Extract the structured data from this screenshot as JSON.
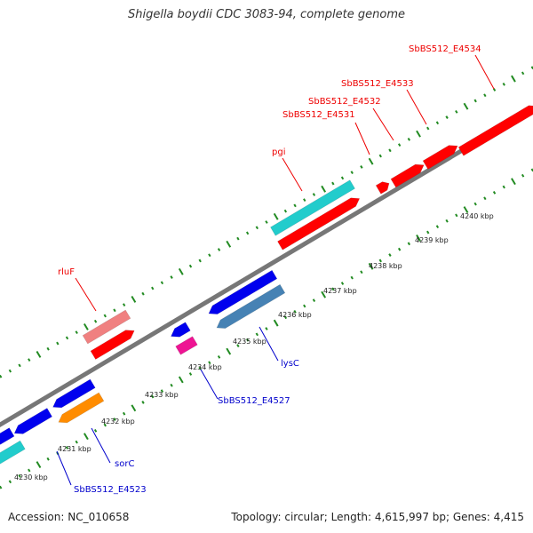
{
  "title": "Shigella boydii CDC 3083-94, complete genome",
  "footer": {
    "accession": "Accession: NC_010658",
    "topology": "Topology: circular; Length: 4,615,997 bp; Genes: 4,415"
  },
  "scale_ticks": [
    {
      "label": "4230 kbp",
      "kbp": 4230
    },
    {
      "label": "4231 kbp",
      "kbp": 4231
    },
    {
      "label": "4232 kbp",
      "kbp": 4232
    },
    {
      "label": "4233 kbp",
      "kbp": 4233
    },
    {
      "label": "4234 kbp",
      "kbp": 4234
    },
    {
      "label": "4235 kbp",
      "kbp": 4235
    },
    {
      "label": "4236 kbp",
      "kbp": 4236
    },
    {
      "label": "4237 kbp",
      "kbp": 4237
    },
    {
      "label": "4238 kbp",
      "kbp": 4238
    },
    {
      "label": "4239 kbp",
      "kbp": 4239
    },
    {
      "label": "4240 kbp",
      "kbp": 4240
    }
  ],
  "forward_labels": [
    {
      "name": "rluF",
      "color": "#ee0000"
    },
    {
      "name": "pgi",
      "color": "#ee0000"
    },
    {
      "name": "SbBS512_E4531",
      "color": "#ee0000"
    },
    {
      "name": "SbBS512_E4532",
      "color": "#ee0000"
    },
    {
      "name": "SbBS512_E4533",
      "color": "#ee0000"
    },
    {
      "name": "SbBS512_E4534",
      "color": "#ee0000"
    }
  ],
  "reverse_labels": [
    {
      "name": "SbBS512_E4523",
      "color": "#0000cc"
    },
    {
      "name": "sorC",
      "color": "#0000cc"
    },
    {
      "name": "SbBS512_E4527",
      "color": "#0000cc"
    },
    {
      "name": "lysC",
      "color": "#0000cc"
    }
  ],
  "colors": {
    "forward_gene": "#ff0000",
    "forward_pink": "#f08080",
    "cyan": "#22cccc",
    "reverse_gene": "#0000ee",
    "steelblue": "#4682b4",
    "orange": "#ff8c00",
    "magenta": "#ee1493",
    "backbone": "#888888",
    "dots": "#228b22"
  }
}
